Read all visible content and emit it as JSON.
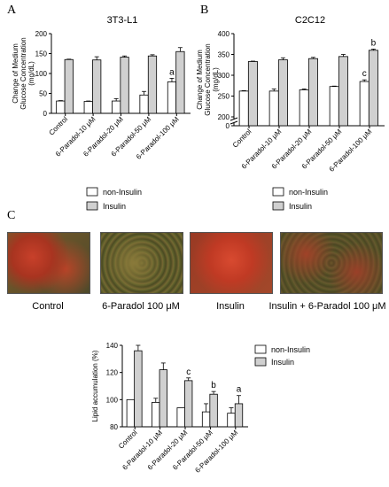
{
  "panels": {
    "a": "A",
    "b": "B",
    "c": "C"
  },
  "chart_data": [
    {
      "id": "chartA",
      "type": "bar",
      "title": "3T3-L1",
      "ylabel": "Change of Medium Glucose Concentration (mg/dL)",
      "ylim": [
        0,
        200
      ],
      "yticks": [
        0,
        50,
        100,
        150,
        200
      ],
      "categories": [
        "Control",
        "6-Paradol-10 μM",
        "6-Paradol-20 μM",
        "6-Paradol-50 μM",
        "6-Paradol-100 μM"
      ],
      "series": [
        {
          "name": "non-Insulin",
          "color": "#ffffff",
          "values": [
            31,
            30,
            31,
            46,
            79
          ],
          "errors": [
            1,
            1,
            6,
            9,
            9
          ]
        },
        {
          "name": "Insulin",
          "color": "#d0d0d0",
          "values": [
            135,
            134,
            141,
            144,
            155
          ],
          "errors": [
            1,
            8,
            3,
            3,
            10
          ]
        }
      ],
      "annotations": [
        {
          "series": 0,
          "index": 4,
          "text": "a"
        }
      ],
      "legend_position": "bottom"
    },
    {
      "id": "chartB",
      "type": "bar",
      "title": "C2C12",
      "ylabel": "Change of Medium Glucose Concentration (mg/dL)",
      "ylim": [
        0,
        400
      ],
      "yticks": [
        0,
        200,
        250,
        300,
        350,
        400
      ],
      "axis_break": true,
      "categories": [
        "Control",
        "6-Paradol-10 μM",
        "6-Paradol-20 μM",
        "6-Paradol-50 μM",
        "6-Paradol-100 μM"
      ],
      "series": [
        {
          "name": "non-Insulin",
          "color": "#ffffff",
          "values": [
            262,
            262,
            265,
            273,
            285
          ],
          "errors": [
            1,
            5,
            2,
            1,
            4
          ]
        },
        {
          "name": "Insulin",
          "color": "#d0d0d0",
          "values": [
            333,
            337,
            340,
            345,
            360
          ],
          "errors": [
            1,
            5,
            3,
            5,
            3
          ]
        }
      ],
      "annotations": [
        {
          "series": 0,
          "index": 4,
          "text": "c"
        },
        {
          "series": 1,
          "index": 4,
          "text": "b"
        }
      ],
      "legend_position": "bottom"
    },
    {
      "id": "chartC",
      "type": "bar",
      "title": "",
      "ylabel": "Lipid accumulation (%)",
      "ylim": [
        80,
        140
      ],
      "yticks": [
        80,
        100,
        120,
        140
      ],
      "categories": [
        "Control",
        "6-Paradol-10 μM",
        "6-Paradol-20 μM",
        "6-Paradol-50 μM",
        "6-Paradol-100 μM"
      ],
      "series": [
        {
          "name": "non-Insulin",
          "color": "#ffffff",
          "values": [
            100,
            98,
            94,
            91,
            90
          ],
          "errors": [
            0,
            3,
            0,
            6,
            4
          ]
        },
        {
          "name": "Insulin",
          "color": "#d0d0d0",
          "values": [
            136,
            122,
            114,
            104,
            97
          ],
          "errors": [
            4,
            5,
            2,
            2,
            6
          ]
        }
      ],
      "annotations": [
        {
          "series": 1,
          "index": 2,
          "text": "c"
        },
        {
          "series": 1,
          "index": 3,
          "text": "b"
        },
        {
          "series": 1,
          "index": 4,
          "text": "a"
        }
      ],
      "legend_position": "right"
    }
  ],
  "photos": [
    {
      "label": "Control",
      "tone": "red-mixed"
    },
    {
      "label": "6-Paradol 100 μM",
      "tone": "green-cells"
    },
    {
      "label": "Insulin",
      "tone": "red-dense"
    },
    {
      "label": "Insulin + 6-Paradol 100 μM",
      "tone": "green-red"
    }
  ]
}
